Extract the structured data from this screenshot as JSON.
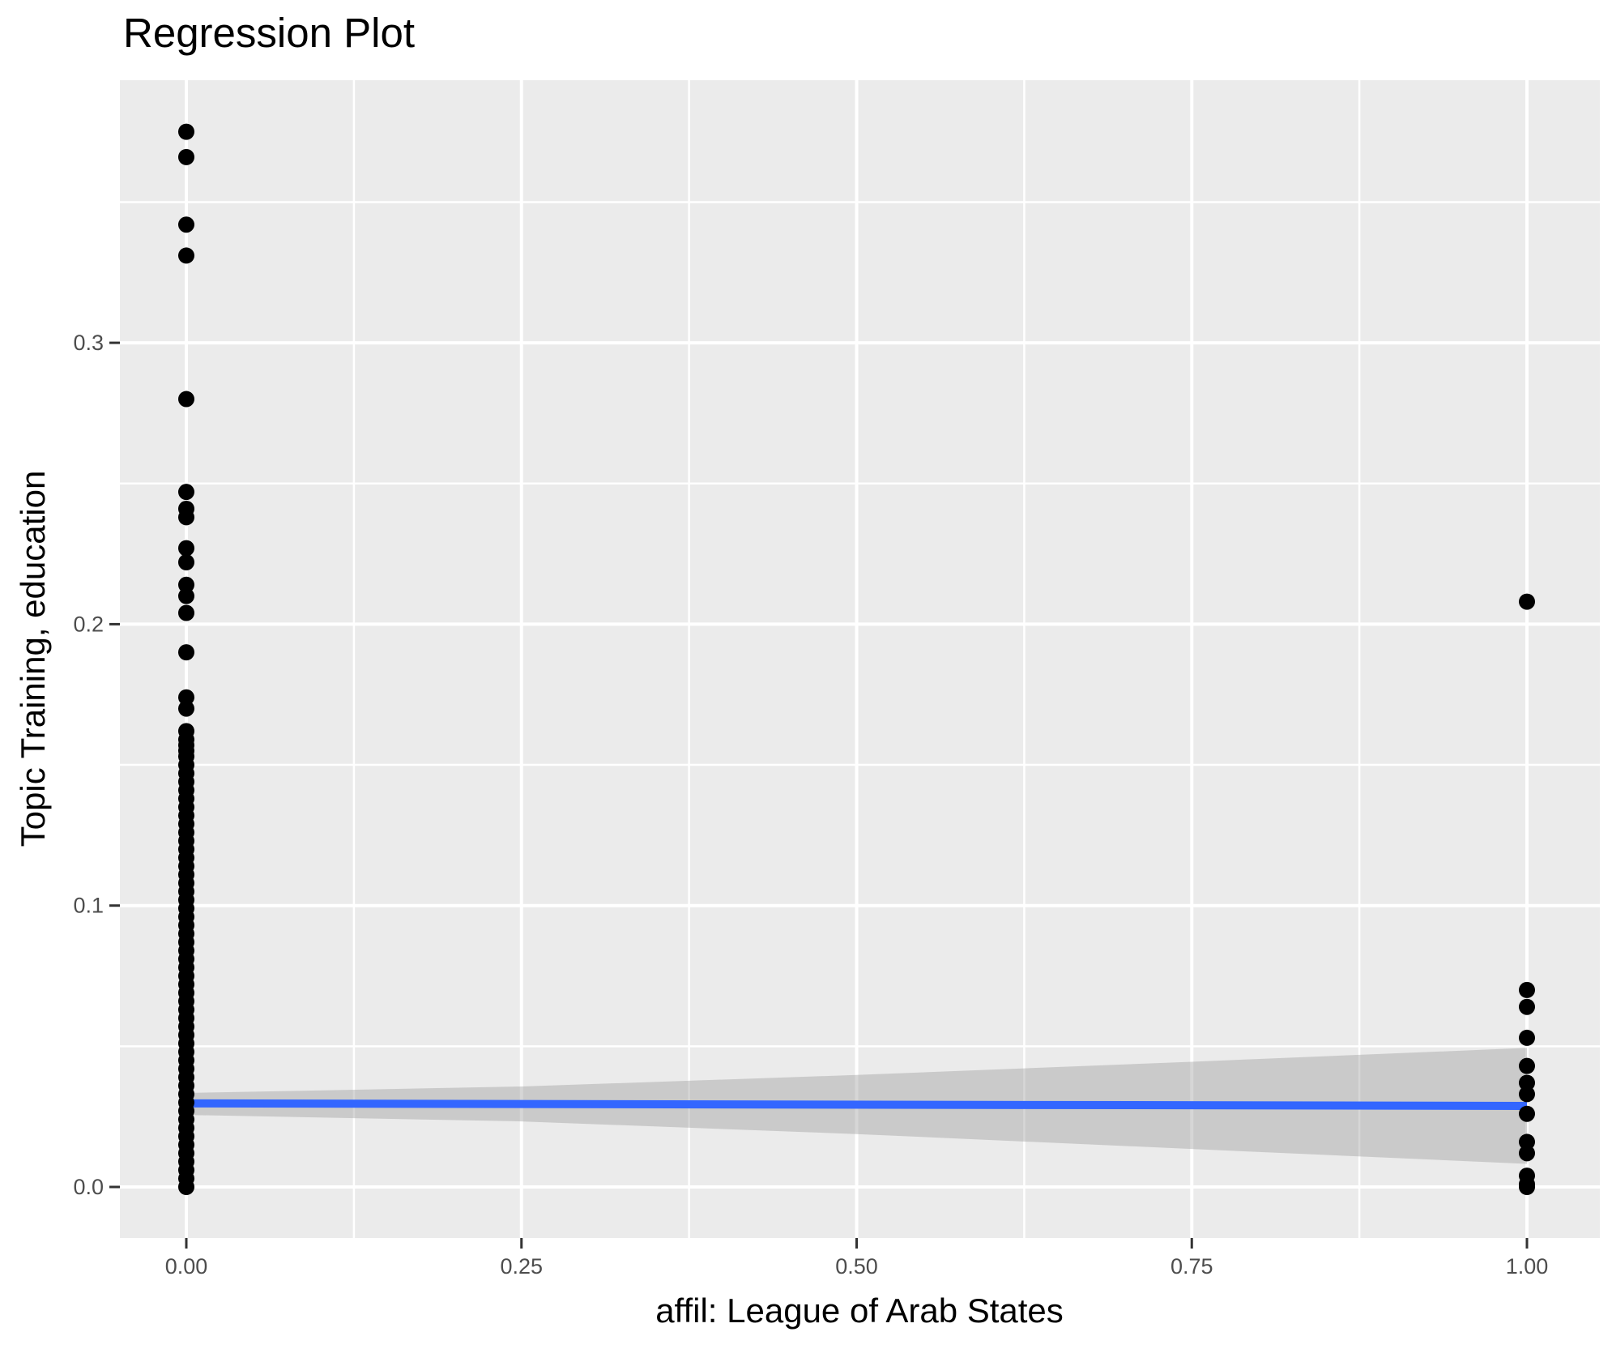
{
  "chart_data": {
    "type": "scatter",
    "title": "Regression Plot",
    "xlabel": "affil: League of Arab States",
    "ylabel": "Topic Training, education",
    "xlim": [
      -0.05,
      1.054
    ],
    "ylim": [
      -0.0181,
      0.3933
    ],
    "grid": "on",
    "legend": "none",
    "x_major_ticks": [
      {
        "value": 0.0,
        "label": "0.00"
      },
      {
        "value": 0.25,
        "label": "0.25"
      },
      {
        "value": 0.5,
        "label": "0.50"
      },
      {
        "value": 0.75,
        "label": "0.75"
      },
      {
        "value": 1.0,
        "label": "1.00"
      }
    ],
    "y_major_ticks": [
      {
        "value": 0.0,
        "label": "0.0"
      },
      {
        "value": 0.1,
        "label": "0.1"
      },
      {
        "value": 0.2,
        "label": "0.2"
      },
      {
        "value": 0.3,
        "label": "0.3"
      }
    ],
    "x_minor_ticks": [
      0.125,
      0.375,
      0.625,
      0.875
    ],
    "y_minor_ticks": [
      0.05,
      0.15,
      0.25,
      0.35
    ],
    "series": [
      {
        "name": "points_at_x_0",
        "x": 0,
        "y": [
          0.375,
          0.366,
          0.342,
          0.331,
          0.28,
          0.247,
          0.241,
          0.238,
          0.227,
          0.222,
          0.214,
          0.21,
          0.204,
          0.19,
          0.174,
          0.17,
          0.162,
          0.159,
          0.157,
          0.155,
          0.153,
          0.15,
          0.147,
          0.144,
          0.141,
          0.138,
          0.135,
          0.132,
          0.129,
          0.126,
          0.123,
          0.12,
          0.117,
          0.114,
          0.111,
          0.108,
          0.105,
          0.102,
          0.099,
          0.096,
          0.093,
          0.09,
          0.087,
          0.084,
          0.081,
          0.078,
          0.075,
          0.072,
          0.069,
          0.066,
          0.063,
          0.06,
          0.057,
          0.054,
          0.051,
          0.048,
          0.045,
          0.042,
          0.039,
          0.036,
          0.033,
          0.03,
          0.027,
          0.024,
          0.021,
          0.018,
          0.015,
          0.012,
          0.009,
          0.006,
          0.003,
          0.0
        ]
      },
      {
        "name": "points_at_x_1",
        "x": 1,
        "y": [
          0.208,
          0.07,
          0.064,
          0.053,
          0.043,
          0.037,
          0.033,
          0.026,
          0.016,
          0.012,
          0.004,
          0.001,
          0.0
        ]
      }
    ],
    "regression": {
      "line": {
        "x": [
          0,
          1
        ],
        "y": [
          0.0297,
          0.0288
        ]
      },
      "confidence_band": {
        "x": [
          0,
          0.25,
          0.5,
          0.75,
          1
        ],
        "upper": [
          0.0334,
          0.0357,
          0.0398,
          0.0445,
          0.0494
        ],
        "lower": [
          0.0256,
          0.0233,
          0.0188,
          0.0135,
          0.0082
        ]
      }
    },
    "style": {
      "panel_background": "#EBEBEB",
      "grid_color": "#FFFFFF",
      "point_color": "#000000",
      "point_radius": 10,
      "line_color": "#3366FF",
      "line_width": 10,
      "band_color": "#999999",
      "band_opacity": 0.4,
      "tick_mark_color": "#333333",
      "tick_label_color": "#4D4D4D"
    }
  }
}
